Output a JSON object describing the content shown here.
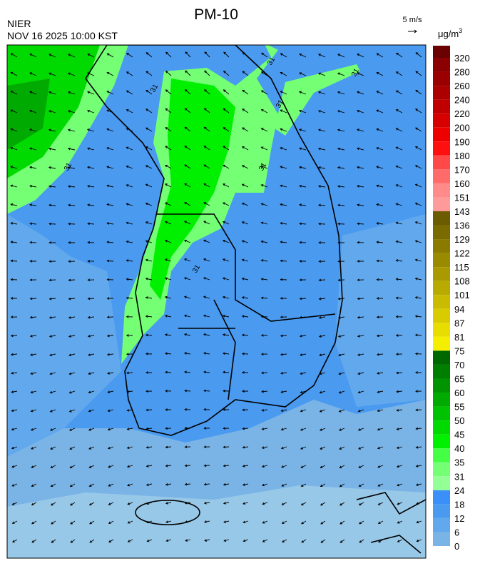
{
  "header": {
    "title": "PM-10",
    "source": "NIER",
    "datetime": "NOV 16 2025 10:00 KST",
    "wind_scale": "5 m/s",
    "unit": {
      "base": "μg/m",
      "sup": "3"
    }
  },
  "colorbar": {
    "labels": [
      320,
      280,
      260,
      240,
      220,
      200,
      190,
      180,
      170,
      160,
      151,
      143,
      136,
      129,
      122,
      115,
      108,
      101,
      94,
      87,
      81,
      75,
      70,
      65,
      60,
      55,
      50,
      45,
      40,
      35,
      31,
      24,
      18,
      12,
      6,
      0
    ],
    "colors": [
      "#8b0000",
      "#9a0000",
      "#ac0000",
      "#c00000",
      "#d60000",
      "#ec0000",
      "#ff1010",
      "#ff4848",
      "#ff6a6a",
      "#ff8a8a",
      "#ff9a9a",
      "#6b5c00",
      "#7a6b00",
      "#8a7b00",
      "#998a00",
      "#a89a00",
      "#b8aa00",
      "#c8bb00",
      "#d8cc00",
      "#e8dd00",
      "#f4ef00",
      "#006800",
      "#007e00",
      "#009400",
      "#00aa00",
      "#00c200",
      "#00da00",
      "#00f000",
      "#44ff44",
      "#74ff74",
      "#94ff94",
      "#3a8ff8",
      "#4a9af0",
      "#62a8ec",
      "#7ab4e6",
      "#98c8e8"
    ],
    "top_color": "#6b0000"
  },
  "map": {
    "contour_labels": [
      "31",
      "31",
      "31",
      "31",
      "31",
      "31",
      "31"
    ]
  }
}
